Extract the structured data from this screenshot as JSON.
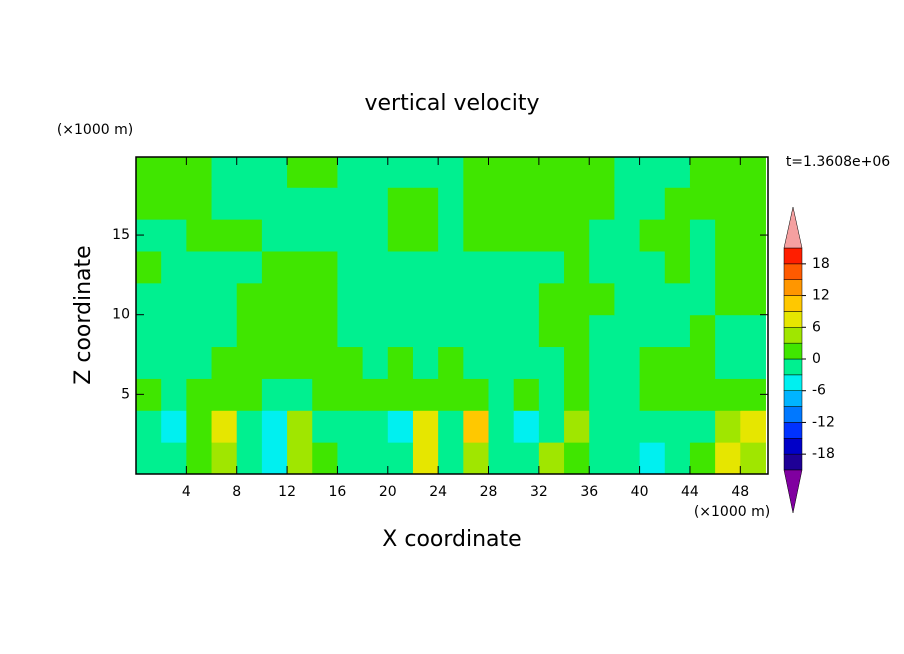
{
  "chart_data": {
    "type": "contour",
    "title": "vertical velocity",
    "xlabel": "X coordinate",
    "ylabel": "Z coordinate",
    "x_unit_label": "(×1000 m)",
    "y_unit_label": "(×1000 m)",
    "annotation": "t=1.3608e+06",
    "xlim": [
      0,
      50.2
    ],
    "ylim": [
      0,
      19.9
    ],
    "xticks": [
      4,
      8,
      12,
      16,
      20,
      24,
      28,
      32,
      36,
      40,
      44,
      48
    ],
    "yticks": [
      5,
      10,
      15
    ],
    "x": [
      1,
      3,
      5,
      7,
      9,
      11,
      13,
      15,
      17,
      19,
      21,
      23,
      25,
      27,
      29,
      31,
      33,
      35,
      37,
      39,
      41,
      43,
      45,
      47,
      49
    ],
    "y": [
      1,
      3,
      5,
      7,
      9,
      11,
      13,
      15,
      17,
      19
    ],
    "z": [
      [
        -3,
        -2,
        1,
        5,
        -2,
        -5,
        3,
        1,
        -1,
        -2,
        -1,
        7,
        -1,
        4,
        -1,
        -3,
        5,
        1,
        -2,
        -1,
        -4,
        -3,
        1,
        8,
        5
      ],
      [
        -2,
        -5,
        1,
        7,
        -3,
        -4,
        4,
        -1,
        -2,
        -3,
        -5,
        8,
        -1,
        9,
        -2,
        -4,
        -1,
        3,
        -2,
        -1,
        -3,
        -2,
        -1,
        4,
        7
      ],
      [
        1,
        -1,
        1,
        1,
        1,
        -1,
        -1,
        1,
        1,
        1,
        1,
        1,
        1,
        1,
        -1,
        1,
        -1,
        1,
        -1,
        -1,
        1,
        1,
        1,
        1,
        1
      ],
      [
        -1,
        -1,
        -1,
        1,
        1,
        1,
        1,
        1,
        1,
        -1,
        1,
        -1,
        1,
        -1,
        -1,
        -1,
        -1,
        1,
        -1,
        -1,
        1,
        1,
        1,
        -1,
        -1
      ],
      [
        -1,
        -1,
        -1,
        -1,
        1,
        1,
        1,
        1,
        -1,
        -1,
        -1,
        -1,
        -1,
        -1,
        -1,
        -1,
        1,
        1,
        -1,
        -1,
        -1,
        -1,
        1,
        -1,
        -1
      ],
      [
        -1,
        -1,
        -1,
        -1,
        1,
        1,
        1,
        1,
        -1,
        -1,
        -1,
        -1,
        -1,
        -1,
        -1,
        -1,
        1,
        1,
        1,
        -1,
        -1,
        -1,
        -1,
        1,
        1
      ],
      [
        1,
        -1,
        -1,
        -1,
        -1,
        1,
        1,
        1,
        -1,
        -1,
        -1,
        -1,
        -1,
        -1,
        -1,
        -1,
        -1,
        1,
        -1,
        -1,
        -1,
        1,
        -1,
        1,
        1
      ],
      [
        -1,
        -1,
        1,
        1,
        1,
        -1,
        -1,
        -1,
        -1,
        -1,
        1,
        1,
        -1,
        1,
        1,
        1,
        1,
        1,
        -1,
        -1,
        1,
        1,
        -1,
        1,
        1
      ],
      [
        1,
        1,
        1,
        -1,
        -1,
        -1,
        -1,
        -1,
        -1,
        -1,
        1,
        1,
        -1,
        1,
        1,
        1,
        1,
        1,
        1,
        -1,
        -1,
        1,
        1,
        1,
        1
      ],
      [
        1,
        1,
        1,
        -1,
        -1,
        -1,
        1,
        1,
        -1,
        -1,
        -1,
        -1,
        -1,
        1,
        1,
        1,
        1,
        1,
        1,
        -1,
        -1,
        -1,
        1,
        1,
        1
      ]
    ],
    "colorbar": {
      "levels": [
        -21,
        -18,
        -15,
        -12,
        -9,
        -6,
        -3,
        0,
        3,
        6,
        9,
        12,
        15,
        18,
        21
      ],
      "colors": [
        "#1e0096",
        "#0000c8",
        "#0032ff",
        "#0078ff",
        "#00b4ff",
        "#00f0f0",
        "#00f090",
        "#40e600",
        "#a0e600",
        "#e6e600",
        "#ffc800",
        "#ff9600",
        "#ff5a00",
        "#ff1e00"
      ],
      "under_color": "#8000a0",
      "over_color": "#f5a0a0",
      "ticks": [
        -18,
        -12,
        -6,
        0,
        6,
        12,
        18
      ]
    }
  }
}
